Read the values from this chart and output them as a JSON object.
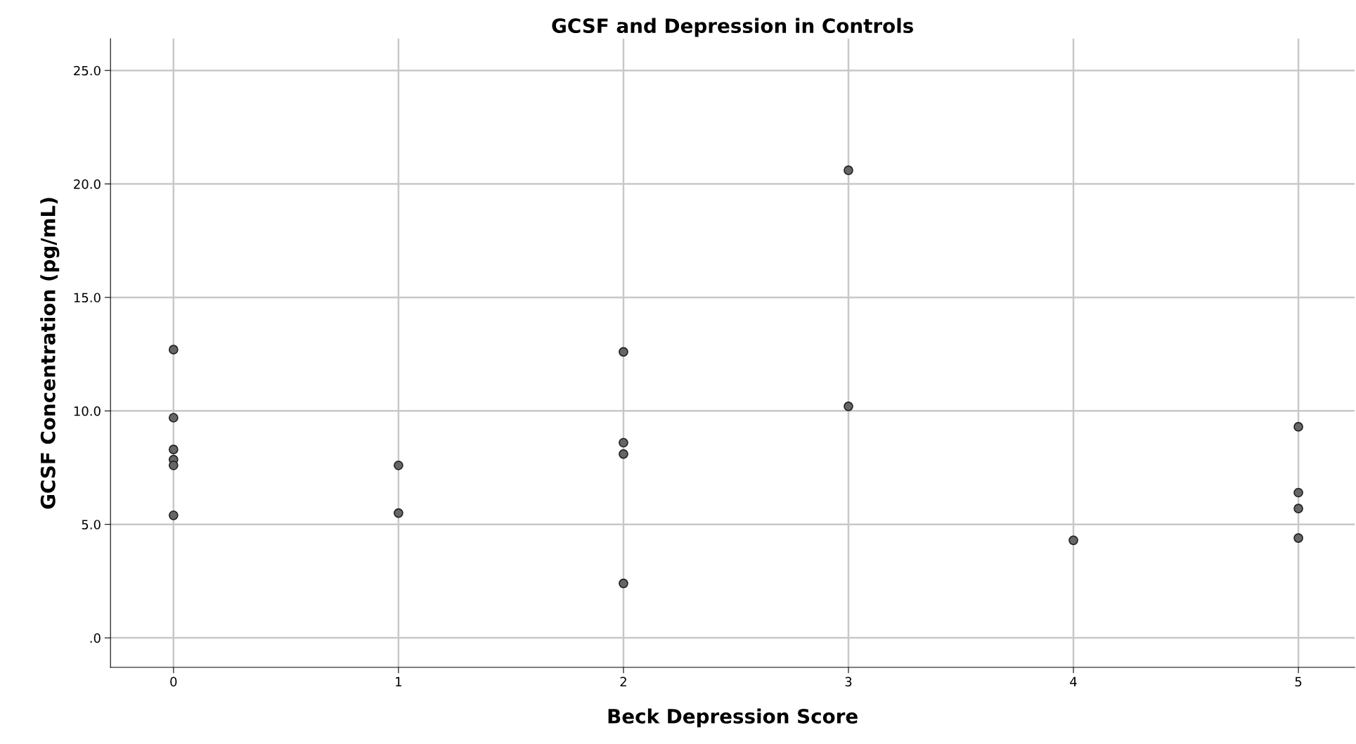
{
  "chart_data": {
    "type": "scatter",
    "title": "GCSF and Depression in Controls",
    "xlabel": "Beck Depression Score",
    "ylabel": "GCSF Concentration (pg/mL)",
    "x": [
      0,
      0,
      0,
      0,
      0,
      0,
      1,
      1,
      2,
      2,
      2,
      2,
      3,
      3,
      4,
      5,
      5,
      5,
      5
    ],
    "values": [
      12.7,
      9.7,
      8.3,
      7.85,
      7.6,
      5.4,
      7.6,
      5.5,
      12.6,
      8.6,
      8.1,
      2.4,
      20.6,
      10.2,
      4.3,
      9.3,
      6.4,
      5.7,
      4.4
    ],
    "color": "#666666",
    "marker": "circle",
    "grid": true,
    "xlim": [
      -0.28,
      5.25
    ],
    "xticks": [
      0,
      1,
      2,
      3,
      4,
      5
    ],
    "ylim": [
      -1.3,
      26.4
    ],
    "yticks": [
      {
        "value": 0,
        "label": ".0"
      },
      {
        "value": 5,
        "label": "5.0"
      },
      {
        "value": 10,
        "label": "10.0"
      },
      {
        "value": 15,
        "label": "15.0"
      },
      {
        "value": 20,
        "label": "20.0"
      },
      {
        "value": 25,
        "label": "25.0"
      }
    ]
  }
}
